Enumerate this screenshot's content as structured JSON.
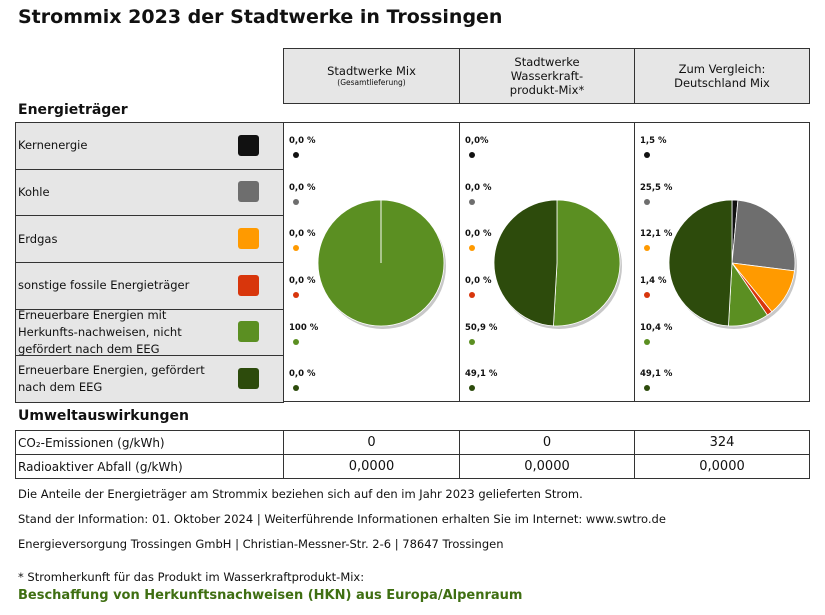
{
  "title": "Strommix 2023 der Stadtwerke in Trossingen",
  "columns": [
    {
      "header_lines": [
        "Stadtwerke Mix"
      ],
      "subtitle": "(Gesamtlieferung)",
      "values": [
        0,
        0,
        0,
        0,
        100,
        0
      ],
      "value_labels": [
        "0,0 %",
        "0,0 %",
        "0,0 %",
        "0,0 %",
        "100 %",
        "0,0 %"
      ]
    },
    {
      "header_lines": [
        "Stadtwerke",
        "Wasserkraft-",
        "produkt-Mix*"
      ],
      "values": [
        0,
        0,
        0,
        0,
        50.9,
        49.1
      ],
      "value_labels": [
        "0,0%",
        "0,0 %",
        "0,0 %",
        "0,0 %",
        "50,9 %",
        "49,1 %"
      ]
    },
    {
      "header_lines": [
        "Zum Vergleich:",
        "Deutschland Mix"
      ],
      "values": [
        1.5,
        25.5,
        12.1,
        1.4,
        10.4,
        49.1
      ],
      "value_labels": [
        "1,5 %",
        "25,5 %",
        "12,1 %",
        "1,4 %",
        "10,4 %",
        "49,1 %"
      ]
    }
  ],
  "energy_heading": "Energieträger",
  "sources": [
    {
      "label": "Kernenergie",
      "color": "#111111"
    },
    {
      "label": "Kohle",
      "color": "#6e6e6e"
    },
    {
      "label": "Erdgas",
      "color": "#ff9a00"
    },
    {
      "label": "sonstige fossile Energieträger",
      "color": "#d8360c"
    },
    {
      "label": "Erneuerbare Energien mit Herkunfts-nachweisen, nicht gefördert nach dem EEG",
      "color": "#5b8f22"
    },
    {
      "label": "Erneuerbare Energien, gefördert nach dem EEG",
      "color": "#2d4b0c"
    }
  ],
  "environment_heading": "Umweltauswirkungen",
  "environment_rows": [
    {
      "label": "CO₂-Emissionen (g/kWh)",
      "values": [
        0,
        0,
        324
      ]
    },
    {
      "label": "Radioaktiver Abfall (g/kWh)",
      "values": [
        "0,0000",
        "0,0000",
        "0,0000"
      ]
    }
  ],
  "notes": [
    "Die Anteile der Energieträger am Strommix beziehen sich auf den im Jahr 2023 gelieferten Strom.",
    "Stand der Information: 01. Oktober 2024 | Weiterführende Informationen erhalten Sie im Internet: www.swtro.de",
    "Energieversorgung Trossingen GmbH | Christian-Messner-Str. 2-6 | 78647 Trossingen"
  ],
  "footnote": "* Stromherkunft für das Produkt im Wasserkraftprodukt-Mix:",
  "footnote_highlight": "Beschaffung von Herkunftsnachweisen (HKN) aus Europa/Alpenraum"
}
